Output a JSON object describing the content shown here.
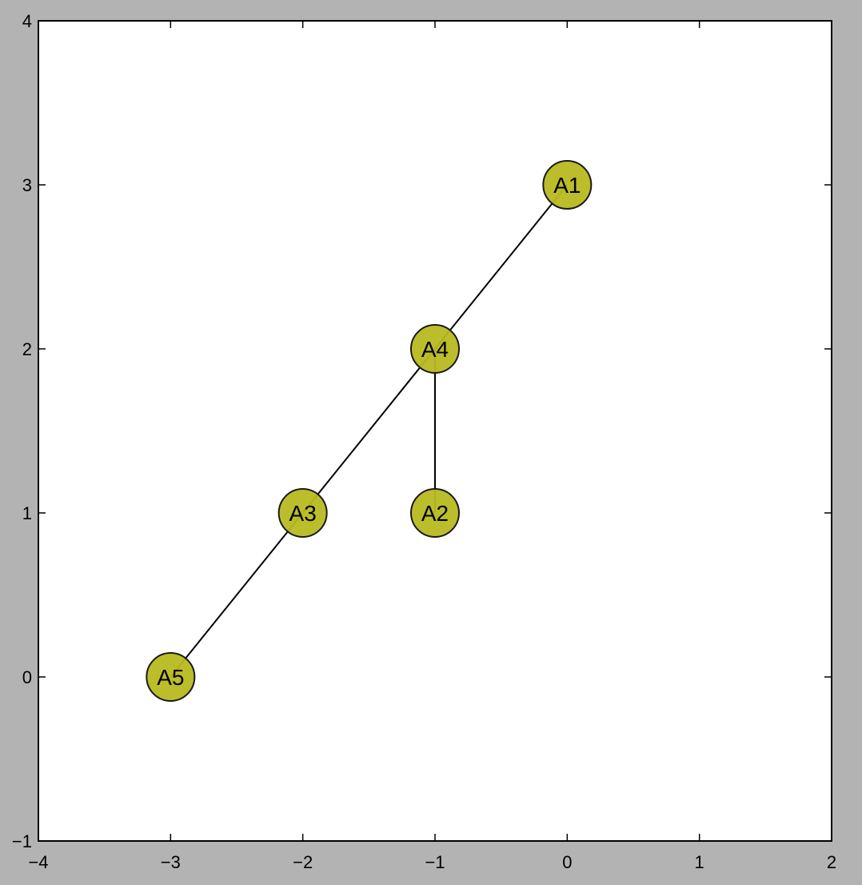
{
  "chart_data": {
    "type": "scatter",
    "title": "",
    "xlabel": "",
    "ylabel": "",
    "xlim": [
      -4,
      2
    ],
    "ylim": [
      -1,
      4
    ],
    "x_ticks": [
      -4,
      -3,
      -2,
      -1,
      0,
      1,
      2
    ],
    "y_ticks": [
      -1,
      0,
      1,
      2,
      3,
      4
    ],
    "x_tick_labels": [
      "−4",
      "−3",
      "−2",
      "−1",
      "0",
      "1",
      "2"
    ],
    "y_tick_labels": [
      "−1",
      "0",
      "1",
      "2",
      "3",
      "4"
    ],
    "grid": false,
    "legend": "none",
    "node_color": "#b8b920",
    "edge_color": "#000000",
    "nodes": [
      {
        "id": "A1",
        "label": "A1",
        "x": 0,
        "y": 3
      },
      {
        "id": "A2",
        "label": "A2",
        "x": -1,
        "y": 1
      },
      {
        "id": "A3",
        "label": "A3",
        "x": -2,
        "y": 1
      },
      {
        "id": "A4",
        "label": "A4",
        "x": -1,
        "y": 2
      },
      {
        "id": "A5",
        "label": "A5",
        "x": -3,
        "y": 0
      }
    ],
    "edges": [
      {
        "source": "A5",
        "target": "A3"
      },
      {
        "source": "A3",
        "target": "A4"
      },
      {
        "source": "A4",
        "target": "A1"
      },
      {
        "source": "A4",
        "target": "A2"
      }
    ]
  }
}
